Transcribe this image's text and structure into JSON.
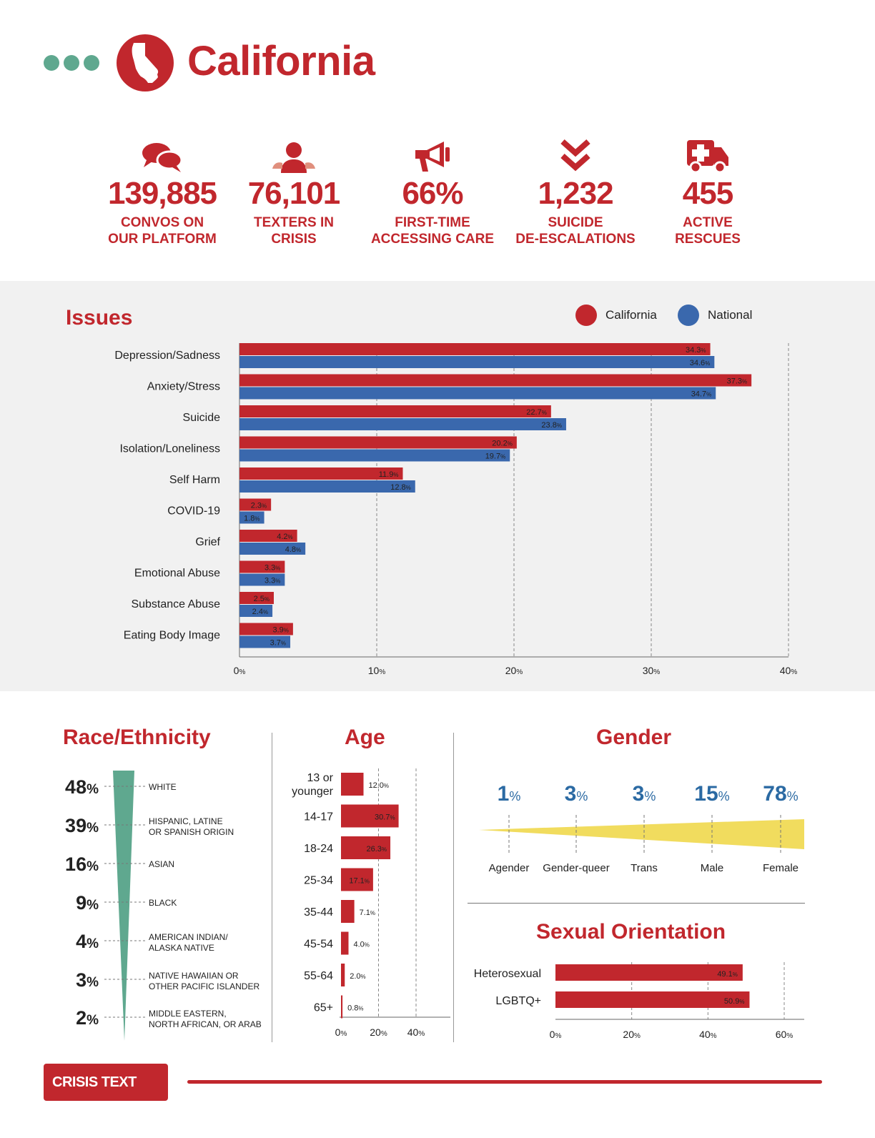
{
  "header": {
    "title": "California",
    "colors": {
      "accent": "#c1272d",
      "green": "#5fa88f",
      "blue": "#2b6aa3",
      "national_blue": "#3a68ad"
    }
  },
  "stats": [
    {
      "icon": "chat-bubbles-icon",
      "value": "139,885",
      "label1": "CONVOS ON",
      "label2": "OUR PLATFORM"
    },
    {
      "icon": "person-icon",
      "value": "76,101",
      "label1": "TEXTERS IN",
      "label2": "CRISIS"
    },
    {
      "icon": "megaphone-icon",
      "value": "66%",
      "label1": "FIRST-TIME",
      "label2": "ACCESSING CARE"
    },
    {
      "icon": "double-chevron-down-icon",
      "value": "1,232",
      "label1": "SUICIDE",
      "label2": "DE-ESCALATIONS"
    },
    {
      "icon": "ambulance-icon",
      "value": "455",
      "label1": "ACTIVE",
      "label2": "RESCUES"
    }
  ],
  "issues": {
    "title": "Issues",
    "legend": {
      "california": "California",
      "national": "National"
    }
  },
  "race": {
    "title": "Race/Ethnicity"
  },
  "age": {
    "title": "Age"
  },
  "gender": {
    "title": "Gender"
  },
  "sexual_orientation": {
    "title": "Sexual Orientation"
  },
  "footer": {
    "brand": "CRISIS TEXT LINE |"
  },
  "chart_data": [
    {
      "type": "bar",
      "orientation": "horizontal",
      "title": "Issues",
      "categories": [
        "Depression/Sadness",
        "Anxiety/Stress",
        "Suicide",
        "Isolation/Loneliness",
        "Self Harm",
        "COVID-19",
        "Grief",
        "Emotional Abuse",
        "Substance Abuse",
        "Eating Body Image"
      ],
      "series": [
        {
          "name": "California",
          "color": "#c1272d",
          "values": [
            34.3,
            37.3,
            22.7,
            20.2,
            11.9,
            2.3,
            4.2,
            3.3,
            2.5,
            3.9
          ]
        },
        {
          "name": "National",
          "color": "#3a68ad",
          "values": [
            34.6,
            34.7,
            23.8,
            19.7,
            12.8,
            1.8,
            4.8,
            3.3,
            2.4,
            3.7
          ]
        }
      ],
      "xlim": [
        0,
        40
      ],
      "xticks": [
        0,
        10,
        20,
        30,
        40
      ],
      "tick_suffix": "%",
      "value_suffix": "%",
      "legend_position": "top-right",
      "grid": "vertical-dashed"
    },
    {
      "type": "bar",
      "orientation": "funnel",
      "title": "Race/Ethnicity",
      "categories": [
        [
          "WHITE"
        ],
        [
          "HISPANIC, LATINE",
          "OR SPANISH ORIGIN"
        ],
        [
          "ASIAN"
        ],
        [
          "BLACK"
        ],
        [
          "AMERICAN INDIAN/",
          "ALASKA NATIVE"
        ],
        [
          "NATIVE HAWAIIAN OR",
          "OTHER PACIFIC ISLANDER"
        ],
        [
          "MIDDLE EASTERN,",
          "NORTH AFRICAN, OR ARAB"
        ]
      ],
      "values": [
        48,
        39,
        16,
        9,
        4,
        3,
        2
      ],
      "value_suffix": "%",
      "color": "#5fa88f"
    },
    {
      "type": "bar",
      "orientation": "horizontal",
      "title": "Age",
      "categories": [
        [
          "13 or",
          "younger"
        ],
        [
          "14-17"
        ],
        [
          "18-24"
        ],
        [
          "25-34"
        ],
        [
          "35-44"
        ],
        [
          "45-54"
        ],
        [
          "55-64"
        ],
        [
          "65+"
        ]
      ],
      "values": [
        12.0,
        30.7,
        26.3,
        17.1,
        7.1,
        4.0,
        2.0,
        0.8
      ],
      "xlim": [
        0,
        40
      ],
      "xticks": [
        0,
        20,
        40
      ],
      "tick_suffix": "%",
      "value_suffix": "%",
      "color": "#c1272d",
      "grid": "vertical-dashed"
    },
    {
      "type": "area",
      "title": "Gender",
      "categories": [
        "Agender",
        "Gender-queer",
        "Trans",
        "Male",
        "Female"
      ],
      "values": [
        1,
        3,
        3,
        15,
        78
      ],
      "value_suffix": "%",
      "color": "#f1dc5e"
    },
    {
      "type": "bar",
      "orientation": "horizontal",
      "title": "Sexual Orientation",
      "categories": [
        "Heterosexual",
        "LGBTQ+"
      ],
      "values": [
        49.1,
        50.9
      ],
      "xlim": [
        0,
        60
      ],
      "xticks": [
        0,
        20,
        40,
        60
      ],
      "tick_suffix": "%",
      "value_suffix": "%",
      "color": "#c1272d",
      "grid": "vertical-dashed"
    }
  ]
}
